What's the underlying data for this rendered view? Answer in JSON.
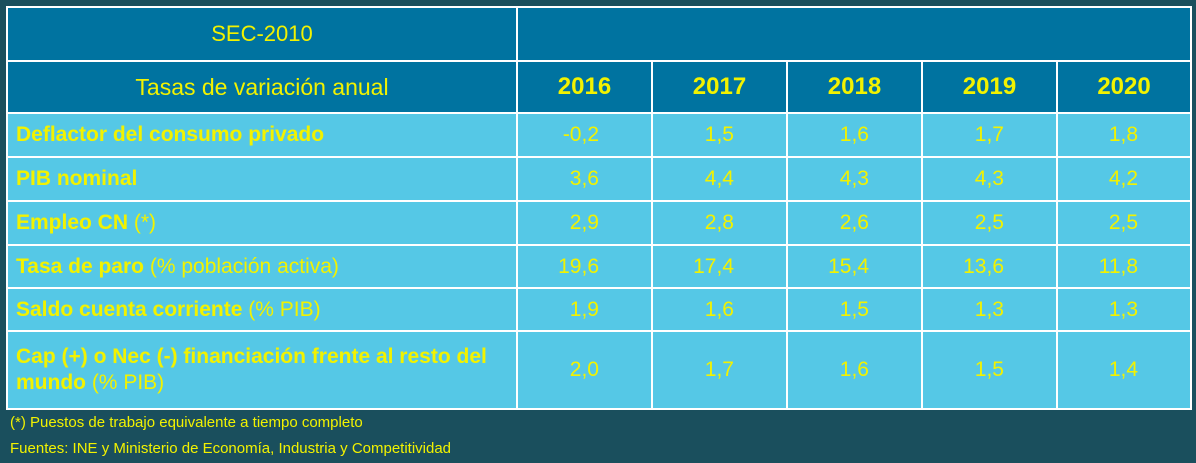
{
  "header": {
    "standard": "SEC-2010",
    "subtitle": "Tasas de variación anual",
    "years": [
      "2016",
      "2017",
      "2018",
      "2019",
      "2020"
    ]
  },
  "rows": [
    {
      "label": "Deflactor del consumo privado",
      "label_suffix": "",
      "values": [
        "-0,2",
        "1,5",
        "1,6",
        "1,7",
        "1,8"
      ]
    },
    {
      "label": "PIB nominal",
      "label_suffix": "",
      "values": [
        "3,6",
        "4,4",
        "4,3",
        "4,3",
        "4,2"
      ]
    },
    {
      "label": "Empleo CN",
      "label_suffix": " (*)",
      "values": [
        "2,9",
        "2,8",
        "2,6",
        "2,5",
        "2,5"
      ]
    },
    {
      "label": "Tasa de paro",
      "label_suffix": " (% población activa)",
      "values": [
        "19,6",
        "17,4",
        "15,4",
        "13,6",
        "11,8"
      ]
    },
    {
      "label": "Saldo cuenta corriente",
      "label_suffix": " (% PIB)",
      "values": [
        "1,9",
        "1,6",
        "1,5",
        "1,3",
        "1,3"
      ]
    },
    {
      "label": " Cap (+) o Nec (-) financiación frente al resto del mundo",
      "label_suffix": " (% PIB)",
      "values": [
        "2,0",
        "1,7",
        "1,6",
        "1,5",
        "1,4"
      ]
    }
  ],
  "notes": {
    "footnote": "(*) Puestos de trabajo equivalente a tiempo completo",
    "sources": "Fuentes: INE y Ministerio de Economía, Industria y Competitividad"
  },
  "colors": {
    "header_bg": "#0073a0",
    "body_bg": "#55c8e6",
    "text": "#f2f200",
    "page_bg": "#1a4f5d"
  }
}
